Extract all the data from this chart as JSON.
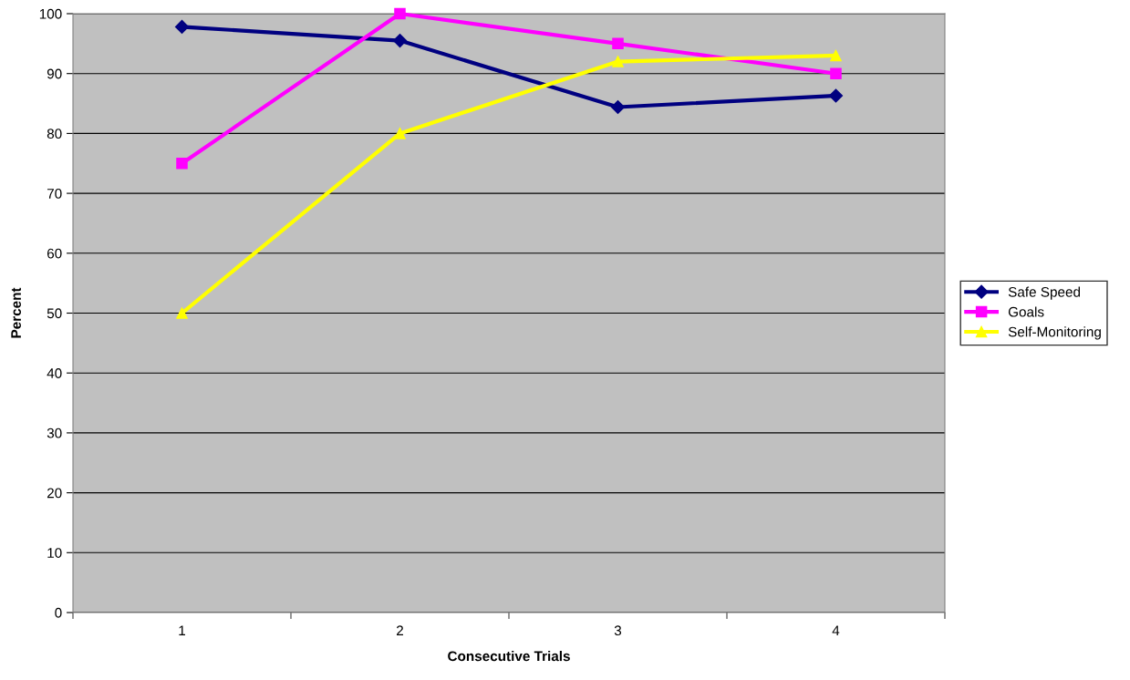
{
  "chart_data": {
    "type": "line",
    "xlabel": "Consecutive Trials",
    "ylabel": "Percent",
    "categories": [
      "1",
      "2",
      "3",
      "4"
    ],
    "series": [
      {
        "name": "Safe Speed",
        "color": "#000080",
        "marker": "diamond",
        "values": [
          97.8,
          95.5,
          84.4,
          86.3
        ]
      },
      {
        "name": "Goals",
        "color": "#ff00ff",
        "marker": "square",
        "values": [
          75,
          100,
          95,
          90
        ]
      },
      {
        "name": "Self-Monitoring",
        "color": "#ffff00",
        "marker": "triangle",
        "values": [
          50,
          80,
          92,
          93
        ]
      }
    ],
    "ylim": [
      0,
      100
    ],
    "yticks": [
      0,
      10,
      20,
      30,
      40,
      50,
      60,
      70,
      80,
      90,
      100
    ],
    "grid": "y",
    "legend": "right"
  }
}
